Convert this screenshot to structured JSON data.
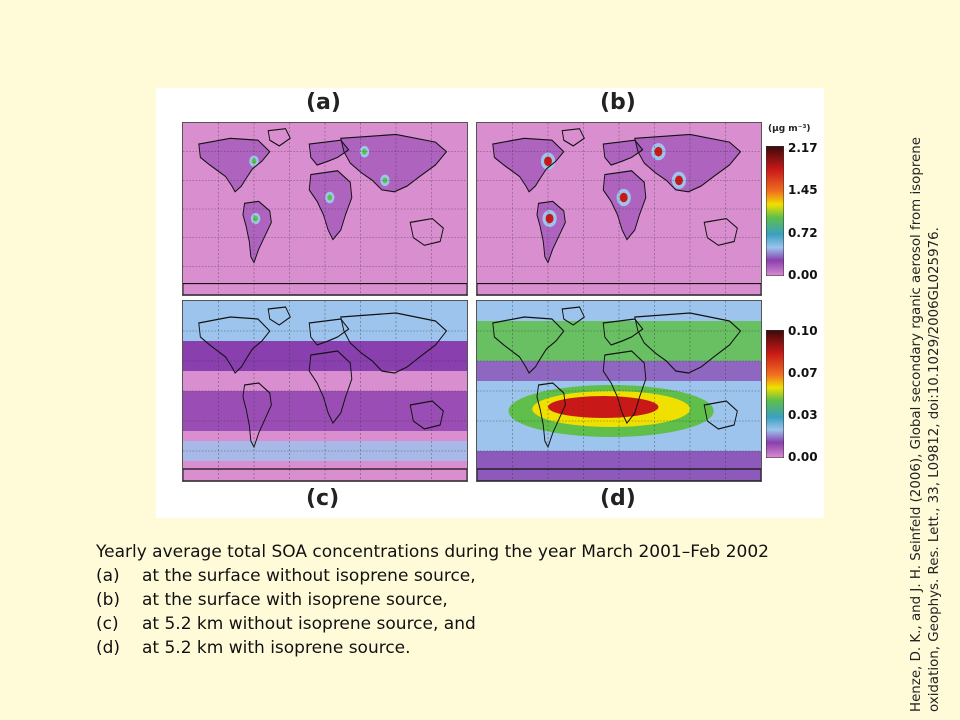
{
  "figure": {
    "panels": [
      {
        "id": "a",
        "label": "(a)"
      },
      {
        "id": "b",
        "label": "(b)"
      },
      {
        "id": "c",
        "label": "(c)"
      },
      {
        "id": "d",
        "label": "(d)"
      }
    ],
    "colorbar_top": {
      "unit": "(μg m⁻³)",
      "ticks": [
        "2.17",
        "1.45",
        "0.72",
        "0.00"
      ]
    },
    "colorbar_bottom": {
      "ticks": [
        "0.10",
        "0.07",
        "0.03",
        "0.00"
      ]
    },
    "colors": {
      "background": "#fffbd9",
      "map_low": "#d98ed0",
      "map_mid": "#8a3fae",
      "blue": "#9cc4ec",
      "green": "#5fbf4a",
      "yellow": "#f0e000",
      "red": "#c81818"
    }
  },
  "caption": {
    "title": "Yearly average total SOA concentrations during the year March 2001–Feb 2002",
    "items": [
      {
        "key": "(a)",
        "text": "at the surface without isoprene source,"
      },
      {
        "key": "(b)",
        "text": "at the surface with isoprene source,"
      },
      {
        "key": "(c)",
        "text": "at 5.2 km without isoprene source, and"
      },
      {
        "key": "(d)",
        "text": "at 5.2 km with isoprene source."
      }
    ]
  },
  "citation": {
    "line1": "Henze, D. K., and J. H. Seinfeld (2006), Global secondary rganic aerosol from isoprene",
    "line2": "oxidation, Geophys. Res. Lett., 33, L09812, doi:10.1029/2006GL025976."
  }
}
